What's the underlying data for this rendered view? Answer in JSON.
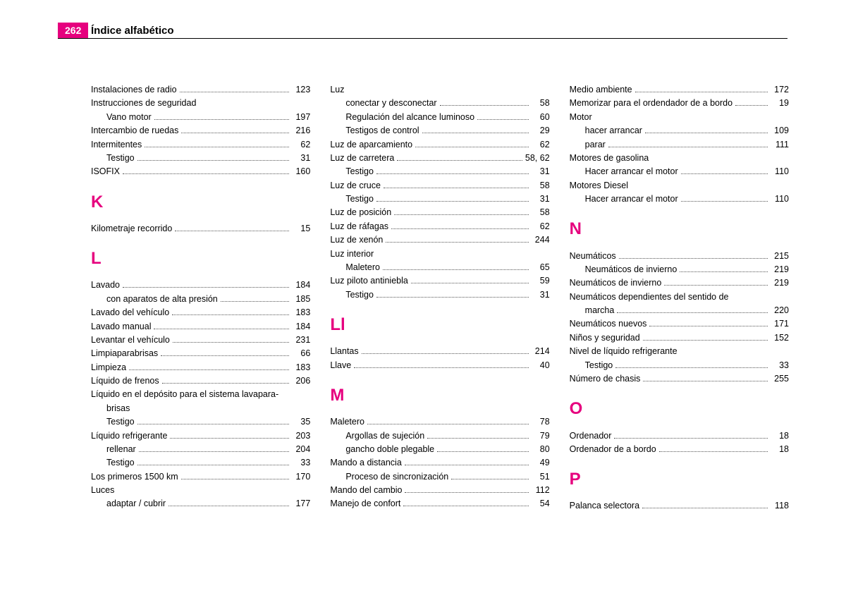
{
  "page_number": "262",
  "page_title": "Índice alfabético",
  "accent_color": "#e6007e",
  "columns": [
    {
      "items": [
        {
          "label": "Instalaciones de radio",
          "page": "123"
        },
        {
          "label": "Instrucciones de seguridad",
          "nopage": true
        },
        {
          "label": "Vano motor",
          "page": "197",
          "sub": true
        },
        {
          "label": "Intercambio de ruedas",
          "page": "216"
        },
        {
          "label": "Intermitentes",
          "page": "62"
        },
        {
          "label": "Testigo",
          "page": "31",
          "sub": true
        },
        {
          "label": "ISOFIX",
          "page": "160"
        },
        {
          "letter": "K"
        },
        {
          "label": "Kilometraje recorrido",
          "page": "15"
        },
        {
          "letter": "L"
        },
        {
          "label": "Lavado",
          "page": "184"
        },
        {
          "label": "con aparatos de alta presión",
          "page": "185",
          "sub": true
        },
        {
          "label": "Lavado del vehículo",
          "page": "183"
        },
        {
          "label": "Lavado manual",
          "page": "184"
        },
        {
          "label": "Levantar el vehículo",
          "page": "231"
        },
        {
          "label": "Limpiaparabrisas",
          "page": "66"
        },
        {
          "label": "Limpieza",
          "page": "183"
        },
        {
          "label": "Líquido de frenos",
          "page": "206"
        },
        {
          "label": "Líquido en el depósito para el sistema lavapara-",
          "wrap": true
        },
        {
          "label": "brisas",
          "sub": true,
          "nopage": true
        },
        {
          "label": "Testigo",
          "page": "35",
          "sub": true
        },
        {
          "label": "Líquido refrigerante",
          "page": "203"
        },
        {
          "label": "rellenar",
          "page": "204",
          "sub": true
        },
        {
          "label": "Testigo",
          "page": "33",
          "sub": true
        },
        {
          "label": "Los primeros 1500 km",
          "page": "170"
        },
        {
          "label": "Luces",
          "nopage": true
        },
        {
          "label": "adaptar / cubrir",
          "page": "177",
          "sub": true
        }
      ]
    },
    {
      "items": [
        {
          "label": "Luz",
          "nopage": true
        },
        {
          "label": "conectar y desconectar",
          "page": "58",
          "sub": true
        },
        {
          "label": "Regulación del alcance luminoso",
          "page": "60",
          "sub": true
        },
        {
          "label": "Testigos de control",
          "page": "29",
          "sub": true
        },
        {
          "label": "Luz de aparcamiento",
          "page": "62"
        },
        {
          "label": "Luz de carretera",
          "page": "58, 62"
        },
        {
          "label": "Testigo",
          "page": "31",
          "sub": true
        },
        {
          "label": "Luz de cruce",
          "page": "58"
        },
        {
          "label": "Testigo",
          "page": "31",
          "sub": true
        },
        {
          "label": "Luz de posición",
          "page": "58"
        },
        {
          "label": "Luz de ráfagas",
          "page": "62"
        },
        {
          "label": "Luz de xenón",
          "page": "244"
        },
        {
          "label": "Luz interior",
          "nopage": true
        },
        {
          "label": "Maletero",
          "page": "65",
          "sub": true
        },
        {
          "label": "Luz piloto antiniebla",
          "page": "59"
        },
        {
          "label": "Testigo",
          "page": "31",
          "sub": true
        },
        {
          "letter": "Ll"
        },
        {
          "label": "Llantas",
          "page": "214"
        },
        {
          "label": "Llave",
          "page": "40"
        },
        {
          "letter": "M"
        },
        {
          "label": "Maletero",
          "page": "78"
        },
        {
          "label": "Argollas de sujeción",
          "page": "79",
          "sub": true
        },
        {
          "label": "gancho doble plegable",
          "page": "80",
          "sub": true
        },
        {
          "label": "Mando a distancia",
          "page": "49"
        },
        {
          "label": "Proceso de sincronización",
          "page": "51",
          "sub": true
        },
        {
          "label": "Mando del cambio",
          "page": "112"
        },
        {
          "label": "Manejo de confort",
          "page": "54"
        }
      ]
    },
    {
      "items": [
        {
          "label": "Medio ambiente",
          "page": "172"
        },
        {
          "label": "Memorizar para el ordendador de a bordo",
          "page": "19"
        },
        {
          "label": "Motor",
          "nopage": true
        },
        {
          "label": "hacer arrancar",
          "page": "109",
          "sub": true
        },
        {
          "label": "parar",
          "page": "111",
          "sub": true
        },
        {
          "label": "Motores de gasolina",
          "nopage": true
        },
        {
          "label": "Hacer arrancar el motor",
          "page": "110",
          "sub": true
        },
        {
          "label": "Motores Diesel",
          "nopage": true
        },
        {
          "label": "Hacer arrancar el motor",
          "page": "110",
          "sub": true
        },
        {
          "letter": "N"
        },
        {
          "label": "Neumáticos",
          "page": "215"
        },
        {
          "label": "Neumáticos de invierno",
          "page": "219",
          "sub": true
        },
        {
          "label": "Neumáticos de invierno",
          "page": "219"
        },
        {
          "label": "Neumáticos dependientes del sentido de",
          "wrap": true
        },
        {
          "label": "marcha",
          "page": "220",
          "sub": true
        },
        {
          "label": "Neumáticos nuevos",
          "page": "171"
        },
        {
          "label": "Niños y seguridad",
          "page": "152"
        },
        {
          "label": "Nivel de líquido refrigerante",
          "nopage": true
        },
        {
          "label": "Testigo",
          "page": "33",
          "sub": true
        },
        {
          "label": "Número de chasis",
          "page": "255"
        },
        {
          "letter": "O"
        },
        {
          "label": "Ordenador",
          "page": "18"
        },
        {
          "label": "Ordenador de a bordo",
          "page": "18"
        },
        {
          "letter": "P"
        },
        {
          "label": "Palanca selectora",
          "page": "118"
        }
      ]
    }
  ]
}
